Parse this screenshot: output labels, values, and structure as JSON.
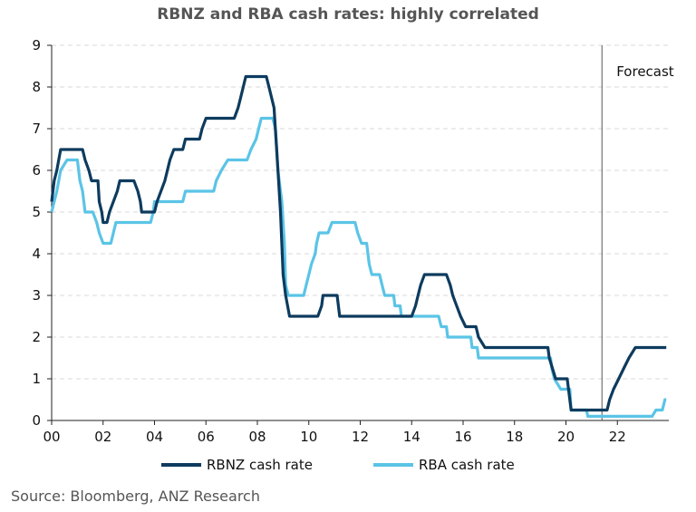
{
  "chart_data": {
    "type": "line",
    "title": "RBNZ and RBA cash rates: highly correlated",
    "xlabel": "",
    "ylabel": "",
    "xlim": [
      2000,
      2024
    ],
    "ylim": [
      0,
      9
    ],
    "x_ticks": [
      {
        "value": 2000,
        "label": "00"
      },
      {
        "value": 2002,
        "label": "02"
      },
      {
        "value": 2004,
        "label": "04"
      },
      {
        "value": 2006,
        "label": "06"
      },
      {
        "value": 2008,
        "label": "08"
      },
      {
        "value": 2010,
        "label": "10"
      },
      {
        "value": 2012,
        "label": "12"
      },
      {
        "value": 2014,
        "label": "14"
      },
      {
        "value": 2016,
        "label": "16"
      },
      {
        "value": 2018,
        "label": "18"
      },
      {
        "value": 2020,
        "label": "20"
      },
      {
        "value": 2022,
        "label": "22"
      }
    ],
    "y_ticks": [
      0,
      1,
      2,
      3,
      4,
      5,
      6,
      7,
      8,
      9
    ],
    "grid": "horizontal dashed",
    "legend": "bottom",
    "annotation": {
      "text": "Forecast",
      "x": 2021.4
    },
    "colors": {
      "rbnz": "#0d3b5e",
      "rba": "#5bc4e6",
      "grid": "#d9d9d9",
      "forecast_line": "#555555"
    },
    "series": [
      {
        "name": "RBNZ cash rate",
        "points": [
          [
            2000.0,
            5.25
          ],
          [
            2000.1,
            5.75
          ],
          [
            2000.2,
            6.0
          ],
          [
            2000.35,
            6.5
          ],
          [
            2001.2,
            6.5
          ],
          [
            2001.3,
            6.25
          ],
          [
            2001.45,
            6.0
          ],
          [
            2001.55,
            5.75
          ],
          [
            2001.8,
            5.75
          ],
          [
            2001.85,
            5.25
          ],
          [
            2001.95,
            5.0
          ],
          [
            2002.0,
            4.75
          ],
          [
            2002.15,
            4.75
          ],
          [
            2002.25,
            5.0
          ],
          [
            2002.4,
            5.25
          ],
          [
            2002.55,
            5.5
          ],
          [
            2002.65,
            5.75
          ],
          [
            2003.2,
            5.75
          ],
          [
            2003.35,
            5.5
          ],
          [
            2003.45,
            5.25
          ],
          [
            2003.5,
            5.0
          ],
          [
            2004.0,
            5.0
          ],
          [
            2004.1,
            5.25
          ],
          [
            2004.25,
            5.5
          ],
          [
            2004.4,
            5.75
          ],
          [
            2004.5,
            6.0
          ],
          [
            2004.6,
            6.25
          ],
          [
            2004.75,
            6.5
          ],
          [
            2005.1,
            6.5
          ],
          [
            2005.2,
            6.75
          ],
          [
            2005.75,
            6.75
          ],
          [
            2005.85,
            7.0
          ],
          [
            2006.0,
            7.25
          ],
          [
            2007.1,
            7.25
          ],
          [
            2007.25,
            7.5
          ],
          [
            2007.35,
            7.75
          ],
          [
            2007.45,
            8.0
          ],
          [
            2007.55,
            8.25
          ],
          [
            2008.35,
            8.25
          ],
          [
            2008.45,
            8.0
          ],
          [
            2008.65,
            7.5
          ],
          [
            2008.75,
            6.5
          ],
          [
            2008.9,
            5.0
          ],
          [
            2009.0,
            3.5
          ],
          [
            2009.1,
            3.0
          ],
          [
            2009.25,
            2.5
          ],
          [
            2010.35,
            2.5
          ],
          [
            2010.5,
            2.75
          ],
          [
            2010.55,
            3.0
          ],
          [
            2011.1,
            3.0
          ],
          [
            2011.2,
            2.5
          ],
          [
            2014.0,
            2.5
          ],
          [
            2014.15,
            2.75
          ],
          [
            2014.25,
            3.0
          ],
          [
            2014.35,
            3.25
          ],
          [
            2014.5,
            3.5
          ],
          [
            2015.35,
            3.5
          ],
          [
            2015.5,
            3.25
          ],
          [
            2015.6,
            3.0
          ],
          [
            2015.75,
            2.75
          ],
          [
            2015.9,
            2.5
          ],
          [
            2016.1,
            2.25
          ],
          [
            2016.5,
            2.25
          ],
          [
            2016.6,
            2.0
          ],
          [
            2016.85,
            1.75
          ],
          [
            2019.3,
            1.75
          ],
          [
            2019.35,
            1.5
          ],
          [
            2019.6,
            1.0
          ],
          [
            2020.05,
            1.0
          ],
          [
            2020.2,
            0.25
          ],
          [
            2021.6,
            0.25
          ],
          [
            2021.7,
            0.5
          ],
          [
            2021.85,
            0.75
          ],
          [
            2022.05,
            1.0
          ],
          [
            2022.25,
            1.25
          ],
          [
            2022.45,
            1.5
          ],
          [
            2022.7,
            1.75
          ],
          [
            2023.9,
            1.75
          ]
        ]
      },
      {
        "name": "RBA cash rate",
        "points": [
          [
            2000.0,
            5.0
          ],
          [
            2000.1,
            5.25
          ],
          [
            2000.2,
            5.5
          ],
          [
            2000.35,
            6.0
          ],
          [
            2000.6,
            6.25
          ],
          [
            2001.0,
            6.25
          ],
          [
            2001.1,
            5.75
          ],
          [
            2001.2,
            5.5
          ],
          [
            2001.3,
            5.0
          ],
          [
            2001.6,
            5.0
          ],
          [
            2001.75,
            4.75
          ],
          [
            2001.85,
            4.5
          ],
          [
            2002.0,
            4.25
          ],
          [
            2002.3,
            4.25
          ],
          [
            2002.4,
            4.5
          ],
          [
            2002.5,
            4.75
          ],
          [
            2003.85,
            4.75
          ],
          [
            2003.95,
            5.0
          ],
          [
            2004.0,
            5.25
          ],
          [
            2005.1,
            5.25
          ],
          [
            2005.2,
            5.5
          ],
          [
            2006.3,
            5.5
          ],
          [
            2006.4,
            5.75
          ],
          [
            2006.6,
            6.0
          ],
          [
            2006.85,
            6.25
          ],
          [
            2007.6,
            6.25
          ],
          [
            2007.75,
            6.5
          ],
          [
            2007.95,
            6.75
          ],
          [
            2008.05,
            7.0
          ],
          [
            2008.15,
            7.25
          ],
          [
            2008.6,
            7.25
          ],
          [
            2008.7,
            7.0
          ],
          [
            2008.8,
            6.0
          ],
          [
            2008.95,
            5.25
          ],
          [
            2009.05,
            4.25
          ],
          [
            2009.1,
            3.25
          ],
          [
            2009.2,
            3.0
          ],
          [
            2009.8,
            3.0
          ],
          [
            2009.9,
            3.25
          ],
          [
            2010.0,
            3.5
          ],
          [
            2010.1,
            3.75
          ],
          [
            2010.25,
            4.0
          ],
          [
            2010.3,
            4.25
          ],
          [
            2010.4,
            4.5
          ],
          [
            2010.75,
            4.5
          ],
          [
            2010.9,
            4.75
          ],
          [
            2011.8,
            4.75
          ],
          [
            2011.9,
            4.5
          ],
          [
            2012.05,
            4.25
          ],
          [
            2012.25,
            4.25
          ],
          [
            2012.35,
            3.75
          ],
          [
            2012.45,
            3.5
          ],
          [
            2012.75,
            3.5
          ],
          [
            2012.85,
            3.25
          ],
          [
            2012.95,
            3.0
          ],
          [
            2013.3,
            3.0
          ],
          [
            2013.35,
            2.75
          ],
          [
            2013.55,
            2.75
          ],
          [
            2013.6,
            2.5
          ],
          [
            2015.05,
            2.5
          ],
          [
            2015.15,
            2.25
          ],
          [
            2015.35,
            2.25
          ],
          [
            2015.4,
            2.0
          ],
          [
            2016.3,
            2.0
          ],
          [
            2016.35,
            1.75
          ],
          [
            2016.55,
            1.75
          ],
          [
            2016.6,
            1.5
          ],
          [
            2019.4,
            1.5
          ],
          [
            2019.45,
            1.25
          ],
          [
            2019.55,
            1.0
          ],
          [
            2019.8,
            0.75
          ],
          [
            2020.15,
            0.75
          ],
          [
            2020.2,
            0.25
          ],
          [
            2020.8,
            0.25
          ],
          [
            2020.85,
            0.1
          ],
          [
            2023.35,
            0.1
          ],
          [
            2023.5,
            0.25
          ],
          [
            2023.75,
            0.25
          ],
          [
            2023.85,
            0.5
          ],
          [
            2023.9,
            0.5
          ]
        ]
      }
    ]
  },
  "source": "Source: Bloomberg, ANZ Research"
}
